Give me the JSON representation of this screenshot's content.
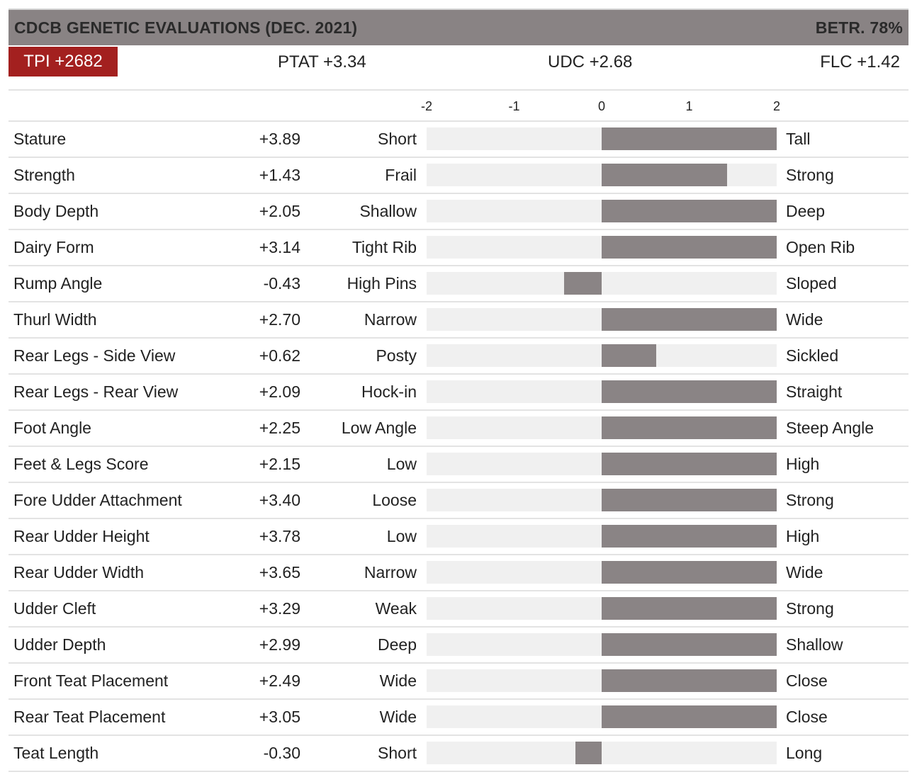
{
  "header": {
    "title": "CDCB GENETIC EVALUATIONS (DEC. 2021)",
    "reliability": "BETR. 78%"
  },
  "summary": {
    "tpi": "TPI +2682",
    "ptat": "PTAT +3.34",
    "udc": "UDC +2.68",
    "flc": "FLC +1.42"
  },
  "colors": {
    "header_bg": "#898384",
    "tpi_bg": "#a3201f",
    "bar": "#8a8485",
    "track": "#f0f0f0"
  },
  "chart_data": {
    "type": "bar",
    "orientation": "horizontal",
    "xlim": [
      -2,
      2
    ],
    "ticks": [
      "-2",
      "-1",
      "0",
      "1",
      "2"
    ],
    "rows": [
      {
        "trait": "Stature",
        "value": 3.89,
        "label": "+3.89",
        "low": "Short",
        "high": "Tall"
      },
      {
        "trait": "Strength",
        "value": 1.43,
        "label": "+1.43",
        "low": "Frail",
        "high": "Strong"
      },
      {
        "trait": "Body Depth",
        "value": 2.05,
        "label": "+2.05",
        "low": "Shallow",
        "high": "Deep"
      },
      {
        "trait": "Dairy Form",
        "value": 3.14,
        "label": "+3.14",
        "low": "Tight Rib",
        "high": "Open Rib"
      },
      {
        "trait": "Rump Angle",
        "value": -0.43,
        "label": "-0.43",
        "low": "High Pins",
        "high": "Sloped"
      },
      {
        "trait": "Thurl Width",
        "value": 2.7,
        "label": "+2.70",
        "low": "Narrow",
        "high": "Wide"
      },
      {
        "trait": "Rear Legs - Side View",
        "value": 0.62,
        "label": "+0.62",
        "low": "Posty",
        "high": "Sickled"
      },
      {
        "trait": "Rear Legs - Rear View",
        "value": 2.09,
        "label": "+2.09",
        "low": "Hock-in",
        "high": "Straight"
      },
      {
        "trait": "Foot Angle",
        "value": 2.25,
        "label": "+2.25",
        "low": "Low Angle",
        "high": "Steep Angle"
      },
      {
        "trait": "Feet & Legs Score",
        "value": 2.15,
        "label": "+2.15",
        "low": "Low",
        "high": "High"
      },
      {
        "trait": "Fore Udder Attachment",
        "value": 3.4,
        "label": "+3.40",
        "low": "Loose",
        "high": "Strong"
      },
      {
        "trait": "Rear Udder Height",
        "value": 3.78,
        "label": "+3.78",
        "low": "Low",
        "high": "High"
      },
      {
        "trait": "Rear Udder Width",
        "value": 3.65,
        "label": "+3.65",
        "low": "Narrow",
        "high": "Wide"
      },
      {
        "trait": "Udder Cleft",
        "value": 3.29,
        "label": "+3.29",
        "low": "Weak",
        "high": "Strong"
      },
      {
        "trait": "Udder Depth",
        "value": 2.99,
        "label": "+2.99",
        "low": "Deep",
        "high": "Shallow"
      },
      {
        "trait": "Front Teat Placement",
        "value": 2.49,
        "label": "+2.49",
        "low": "Wide",
        "high": "Close"
      },
      {
        "trait": "Rear Teat Placement",
        "value": 3.05,
        "label": "+3.05",
        "low": "Wide",
        "high": "Close"
      },
      {
        "trait": "Teat Length",
        "value": -0.3,
        "label": "-0.30",
        "low": "Short",
        "high": "Long"
      }
    ]
  }
}
